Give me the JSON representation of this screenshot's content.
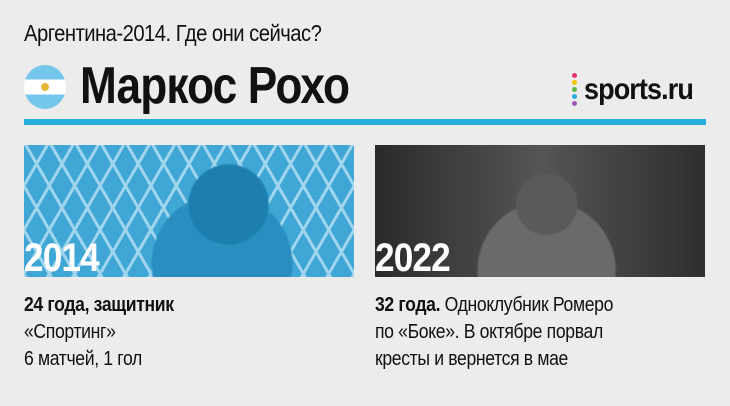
{
  "subtitle": "Аргентина-2014. Где они сейчас?",
  "title": "Маркос Рохо",
  "flag": "argentina-flag",
  "logo": {
    "text": "sports.ru",
    "dot_colors": [
      "#e8336b",
      "#f5c400",
      "#5bb947",
      "#29aee0",
      "#9b59b6"
    ]
  },
  "accent_color": "#29aee0",
  "left": {
    "year": "2014",
    "bold": "24 года, защитник",
    "lines": [
      "«Спортинг»",
      "6 матчей, 1 гол"
    ]
  },
  "right": {
    "year": "2022",
    "bold": "32 года.",
    "line1_rest": " Одноклубник Ромеро",
    "lines": [
      "по «Боке». В октябре порвал",
      "кресты и вернется в мае"
    ]
  }
}
